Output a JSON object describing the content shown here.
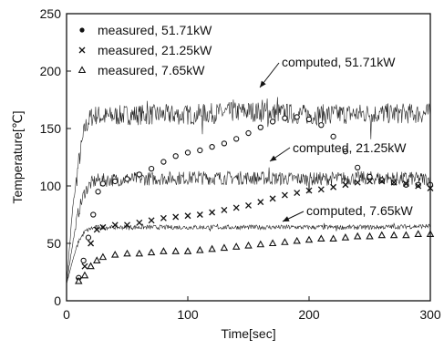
{
  "chart_data": {
    "type": "line",
    "xlabel": "Time[sec]",
    "ylabel": "Temperature[℃]",
    "xlim": [
      0,
      300
    ],
    "ylim": [
      0,
      250
    ],
    "xticks": [
      0,
      100,
      200,
      300
    ],
    "yticks": [
      0,
      50,
      100,
      150,
      200,
      250
    ],
    "grid": false,
    "legend_position": "top-left",
    "legend": [
      {
        "marker": "dot",
        "label": "measured, 51.71kW"
      },
      {
        "marker": "cross",
        "label": "measured, 21.25kW"
      },
      {
        "marker": "triangle",
        "label": "measured, 7.65kW"
      }
    ],
    "annotations": [
      {
        "text": "computed, 51.71kW",
        "series": "computed_51"
      },
      {
        "text": "computed, 21.25kW",
        "series": "computed_21"
      },
      {
        "text": "computed, 7.65kW",
        "series": "computed_7"
      }
    ],
    "computed_series": [
      {
        "id": "computed_51",
        "x": [
          0,
          5,
          10,
          15,
          20,
          25,
          30,
          50,
          100,
          150,
          200,
          250,
          300
        ],
        "y": [
          15,
          80,
          120,
          150,
          160,
          162,
          160,
          162,
          162,
          165,
          162,
          163,
          163
        ],
        "noise": 9
      },
      {
        "id": "computed_21",
        "x": [
          0,
          5,
          10,
          15,
          20,
          25,
          30,
          50,
          100,
          150,
          200,
          250,
          300
        ],
        "y": [
          15,
          50,
          78,
          95,
          102,
          105,
          105,
          106,
          107,
          107,
          106,
          107,
          106
        ],
        "noise": 6
      },
      {
        "id": "computed_7",
        "x": [
          0,
          5,
          10,
          15,
          20,
          25,
          30,
          50,
          100,
          150,
          200,
          250,
          300
        ],
        "y": [
          15,
          35,
          52,
          60,
          63,
          64,
          64,
          64,
          64,
          64,
          64,
          64,
          65
        ],
        "noise": 2
      }
    ],
    "measured_series": [
      {
        "marker": "dot",
        "x": [
          10,
          14,
          18,
          22,
          26,
          30,
          40,
          50,
          60,
          70,
          80,
          90,
          100,
          110,
          120,
          130,
          140,
          150,
          160,
          170,
          180,
          190,
          200,
          210,
          220,
          230,
          240,
          250,
          260,
          270,
          280,
          290,
          300
        ],
        "y": [
          20,
          35,
          55,
          75,
          95,
          102,
          104,
          106,
          110,
          115,
          121,
          126,
          129,
          131,
          134,
          137,
          141,
          146,
          151,
          156,
          159,
          160,
          158,
          153,
          143,
          130,
          116,
          108,
          105,
          103,
          101,
          101,
          101
        ]
      },
      {
        "marker": "cross",
        "x": [
          10,
          15,
          20,
          25,
          30,
          40,
          50,
          60,
          70,
          80,
          90,
          100,
          110,
          120,
          130,
          140,
          150,
          160,
          170,
          180,
          190,
          200,
          210,
          220,
          230,
          240,
          250,
          260,
          270,
          280,
          290,
          300
        ],
        "y": [
          18,
          30,
          50,
          62,
          64,
          66,
          66,
          68,
          70,
          72,
          73,
          74,
          75,
          77,
          79,
          81,
          83,
          86,
          89,
          92,
          94,
          96,
          97,
          99,
          101,
          103,
          104,
          104,
          103,
          102,
          100,
          98
        ]
      },
      {
        "marker": "triangle",
        "x": [
          10,
          15,
          20,
          25,
          30,
          40,
          50,
          60,
          70,
          80,
          90,
          100,
          110,
          120,
          130,
          140,
          150,
          160,
          170,
          180,
          190,
          200,
          210,
          220,
          230,
          240,
          250,
          260,
          270,
          280,
          290,
          300
        ],
        "y": [
          17,
          22,
          30,
          35,
          38,
          40,
          41,
          41,
          42,
          43,
          43,
          43,
          44,
          45,
          46,
          47,
          48,
          49,
          50,
          51,
          52,
          53,
          54,
          54,
          55,
          56,
          56,
          57,
          57,
          57,
          58,
          58
        ]
      }
    ]
  }
}
